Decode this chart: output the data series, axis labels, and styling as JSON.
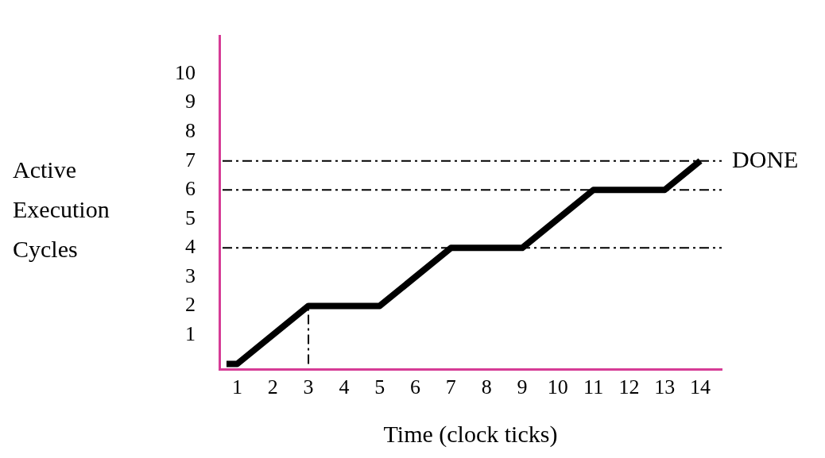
{
  "chart_data": {
    "type": "line",
    "xlabel": "Time (clock ticks)",
    "ylabel": "Active Execution Cycles",
    "xlim": [
      0.5,
      14.6
    ],
    "ylim": [
      -0.2,
      11.3
    ],
    "xticks": [
      1,
      2,
      3,
      4,
      5,
      6,
      7,
      8,
      9,
      10,
      11,
      12,
      13,
      14
    ],
    "yticks": [
      1,
      2,
      3,
      4,
      5,
      6,
      7,
      8,
      9,
      10
    ],
    "grid": false,
    "legend": false,
    "marker": "none",
    "series": [
      {
        "color": "#000000",
        "x": [
          0.7,
          1,
          3,
          5,
          7,
          9,
          11,
          13,
          14
        ],
        "values": [
          0,
          0,
          2,
          2,
          4,
          4,
          6,
          6,
          7
        ]
      },
      {
        "color": "#000000",
        "line_style": "dashed",
        "x": [
          3,
          3
        ],
        "values": [
          0,
          2
        ]
      }
    ],
    "ref_lines": [
      {
        "axis": "y",
        "value": 4,
        "line_style": "dashed"
      },
      {
        "axis": "y",
        "value": 6,
        "line_style": "dashed"
      },
      {
        "axis": "y",
        "value": 7,
        "line_style": "dashed"
      }
    ],
    "annotations": [
      {
        "text": "DONE",
        "x": 14,
        "y": 7
      }
    ]
  }
}
